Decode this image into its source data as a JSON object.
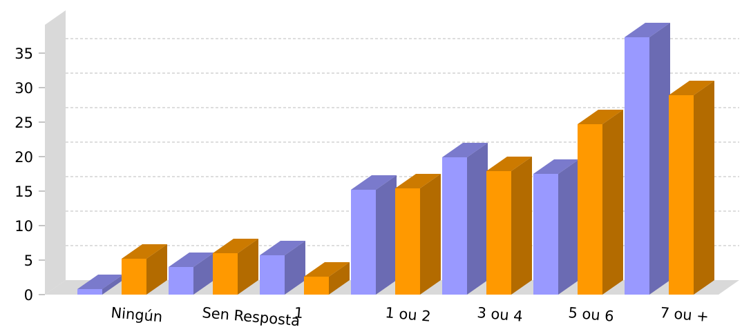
{
  "chart_data": {
    "type": "bar3d",
    "categories": [
      "Ningún",
      "Sen Resposta",
      "1",
      "1 ou 2",
      "3 ou 4",
      "5 ou 6",
      "7 ou +"
    ],
    "series": [
      {
        "color": "#9999ff",
        "values": [
          0.8,
          4.0,
          5.7,
          15.2,
          19.9,
          17.5,
          37.3
        ]
      },
      {
        "color": "#ff9900",
        "values": [
          5.2,
          6.0,
          2.6,
          15.4,
          17.9,
          24.7,
          28.9
        ]
      }
    ],
    "ylim": [
      0,
      35
    ],
    "yticks": [
      0,
      5,
      10,
      15,
      20,
      25,
      30,
      35
    ],
    "grid": true
  }
}
